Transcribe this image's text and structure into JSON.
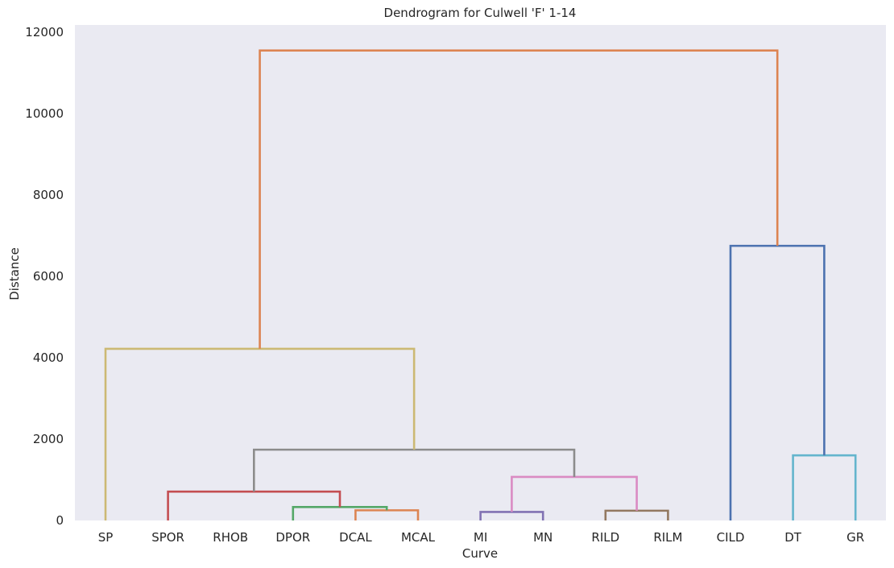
{
  "chart_data": {
    "type": "dendrogram",
    "title": "Dendrogram for Culwell 'F' 1-14",
    "xlabel": "Curve",
    "ylabel": "Distance",
    "ylim": [
      0,
      12000
    ],
    "yticks": [
      0,
      2000,
      4000,
      6000,
      8000,
      10000,
      12000
    ],
    "grid": false,
    "background": "#eaeaf2",
    "leaves": [
      "SP",
      "SPOR",
      "RHOB",
      "DPOR",
      "DCAL",
      "MCAL",
      "MI",
      "MN",
      "RILD",
      "RILM",
      "CILD",
      "DT",
      "GR"
    ],
    "links": [
      {
        "left": 4.0,
        "right": 5.0,
        "left_height": 0,
        "right_height": 0,
        "height": 250,
        "color": "#dd8452"
      },
      {
        "left": 3.0,
        "right": 4.5,
        "left_height": 0,
        "right_height": 250,
        "height": 330,
        "color": "#55a868"
      },
      {
        "left": 1.0,
        "right": 3.75,
        "left_height": 0,
        "right_height": 330,
        "height": 710,
        "color": "#c44e52"
      },
      {
        "left": 6.0,
        "right": 7.0,
        "left_height": 0,
        "right_height": 0,
        "height": 210,
        "color": "#8172b3"
      },
      {
        "left": 8.0,
        "right": 9.0,
        "left_height": 0,
        "right_height": 0,
        "height": 240,
        "color": "#937860"
      },
      {
        "left": 6.5,
        "right": 8.5,
        "left_height": 210,
        "right_height": 240,
        "height": 1070,
        "color": "#da8bc3"
      },
      {
        "left": 2.375,
        "right": 7.5,
        "left_height": 710,
        "right_height": 1070,
        "height": 1740,
        "color": "#8c8c8c"
      },
      {
        "left": 0.0,
        "right": 4.9375,
        "left_height": 0,
        "right_height": 1740,
        "height": 4220,
        "color": "#ccb974"
      },
      {
        "left": 11.0,
        "right": 12.0,
        "left_height": 0,
        "right_height": 0,
        "height": 1600,
        "color": "#64b5cd"
      },
      {
        "left": 10.0,
        "right": 11.5,
        "left_height": 0,
        "right_height": 1600,
        "height": 6750,
        "color": "#4c72b0"
      },
      {
        "left": 2.46875,
        "right": 10.75,
        "left_height": 4220,
        "right_height": 6750,
        "height": 11550,
        "color": "#dd8452"
      }
    ]
  }
}
